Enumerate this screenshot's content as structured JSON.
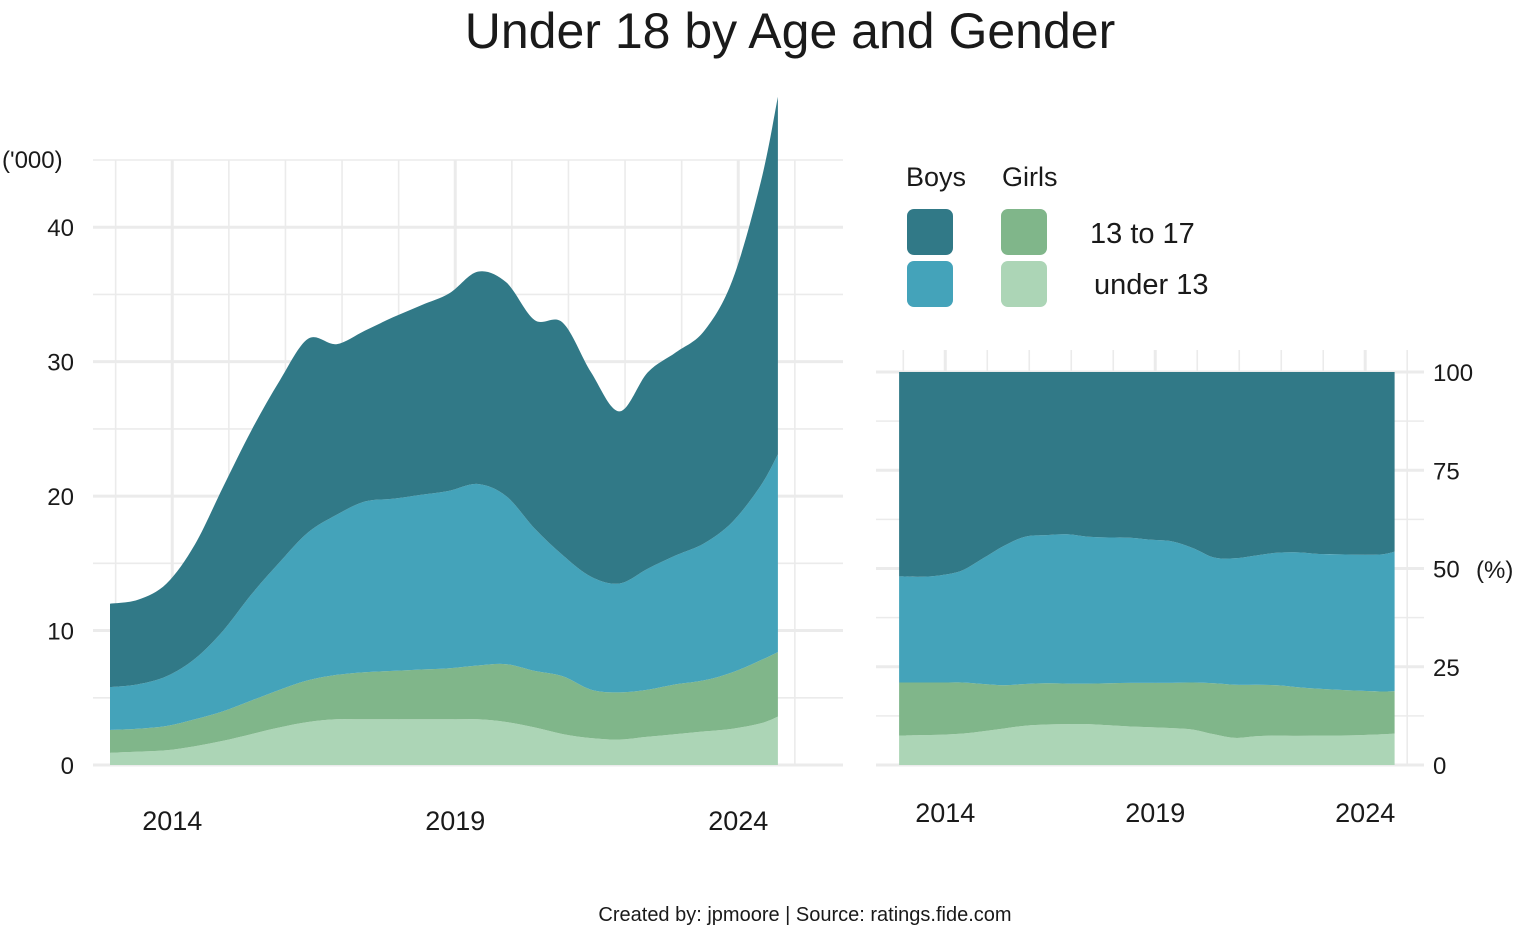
{
  "title": "Under 18 by Age and Gender",
  "caption": "Created by: jpmoore | Source: ratings.fide.com",
  "colors": {
    "boys_13_to_17": "#317987",
    "boys_under_13": "#44a3ba",
    "girls_13_to_17": "#80b68a",
    "girls_under_13": "#acd5b6",
    "grid": "#ebebeb"
  },
  "legend": {
    "headers": [
      "Boys",
      "Girls"
    ],
    "rows": [
      "13 to 17",
      "under 13"
    ]
  },
  "chart_data": [
    {
      "type": "area",
      "subtype": "stacked",
      "ylabel": "('000)",
      "xlim": [
        2012.6,
        2025.0
      ],
      "ylim": [
        0,
        45
      ],
      "yticks": [
        0,
        10,
        20,
        30,
        40
      ],
      "xticks": [
        2014,
        2019,
        2024
      ],
      "grid": true,
      "x": [
        2012.9,
        2013.4,
        2013.9,
        2014.4,
        2014.9,
        2015.4,
        2015.9,
        2016.4,
        2016.9,
        2017.4,
        2017.9,
        2018.4,
        2018.9,
        2019.4,
        2019.9,
        2020.4,
        2020.9,
        2021.4,
        2021.9,
        2022.4,
        2022.9,
        2023.4,
        2023.9,
        2024.4,
        2024.7
      ],
      "series": [
        {
          "name": "Girls under 13",
          "values": [
            0.9,
            1.0,
            1.1,
            1.4,
            1.8,
            2.3,
            2.8,
            3.2,
            3.4,
            3.4,
            3.4,
            3.4,
            3.4,
            3.4,
            3.2,
            2.8,
            2.3,
            2.0,
            1.9,
            2.1,
            2.3,
            2.5,
            2.7,
            3.1,
            3.6
          ]
        },
        {
          "name": "Girls 13 to 17",
          "values": [
            1.7,
            1.7,
            1.8,
            2.0,
            2.2,
            2.5,
            2.8,
            3.1,
            3.3,
            3.5,
            3.6,
            3.7,
            3.8,
            4.0,
            4.3,
            4.2,
            4.3,
            3.6,
            3.5,
            3.5,
            3.7,
            3.8,
            4.2,
            4.7,
            4.8
          ]
        },
        {
          "name": "Boys under 13",
          "values": [
            3.2,
            3.3,
            3.7,
            4.5,
            6.0,
            7.9,
            9.5,
            11.0,
            11.9,
            12.7,
            12.8,
            13.0,
            13.2,
            13.5,
            12.5,
            10.6,
            9.0,
            8.4,
            8.1,
            9.0,
            9.6,
            10.2,
            11.2,
            13.0,
            14.7
          ]
        },
        {
          "name": "Boys 13 to 17",
          "values": [
            6.2,
            6.3,
            6.9,
            8.5,
            10.7,
            12.2,
            13.5,
            14.4,
            12.7,
            12.7,
            13.5,
            14.1,
            14.7,
            15.8,
            15.9,
            15.5,
            17.3,
            15.2,
            12.8,
            14.6,
            15.1,
            15.8,
            18.0,
            22.6,
            26.6
          ]
        }
      ]
    },
    {
      "type": "area",
      "subtype": "stacked-percent",
      "ylabel": "(%)",
      "ylim": [
        0,
        100
      ],
      "yticks": [
        0,
        25,
        50,
        75,
        100
      ],
      "xticks": [
        2014,
        2019,
        2024
      ],
      "grid": true,
      "x": [
        2012.9,
        2013.4,
        2013.9,
        2014.4,
        2014.9,
        2015.4,
        2015.9,
        2016.4,
        2016.9,
        2017.4,
        2017.9,
        2018.4,
        2018.9,
        2019.4,
        2019.9,
        2020.4,
        2020.9,
        2021.4,
        2021.9,
        2022.4,
        2022.9,
        2023.4,
        2023.9,
        2024.4,
        2024.7
      ],
      "series": [
        {
          "name": "Girls under 13",
          "values": [
            7.5,
            7.6,
            7.7,
            8.0,
            8.6,
            9.3,
            10.0,
            10.3,
            10.4,
            10.4,
            10.1,
            9.8,
            9.6,
            9.4,
            9.0,
            7.8,
            6.9,
            7.3,
            7.5,
            7.4,
            7.5,
            7.5,
            7.6,
            7.8,
            8.0
          ]
        },
        {
          "name": "Girls 13 to 17",
          "values": [
            13.5,
            13.4,
            13.3,
            13.0,
            12.0,
            11.0,
            10.6,
            10.5,
            10.3,
            10.3,
            10.7,
            11.1,
            11.3,
            11.5,
            12.0,
            13.0,
            13.5,
            13.1,
            12.8,
            12.4,
            11.9,
            11.6,
            11.3,
            10.9,
            10.8
          ]
        },
        {
          "name": "Boys under 13",
          "values": [
            27.0,
            26.9,
            27.3,
            28.5,
            32.0,
            35.5,
            37.5,
            37.7,
            38.0,
            37.4,
            37.1,
            36.9,
            36.4,
            36.0,
            34.2,
            32.0,
            32.2,
            32.9,
            33.7,
            34.3,
            34.3,
            34.5,
            34.6,
            34.9,
            35.5
          ]
        },
        {
          "name": "Boys 13 to 17",
          "values": [
            52.0,
            52.1,
            51.7,
            50.5,
            47.4,
            44.2,
            41.9,
            41.5,
            41.3,
            41.9,
            42.1,
            42.2,
            42.7,
            43.1,
            44.8,
            47.2,
            47.4,
            46.7,
            46.0,
            45.9,
            46.3,
            46.4,
            46.5,
            46.4,
            45.7
          ]
        }
      ]
    }
  ]
}
